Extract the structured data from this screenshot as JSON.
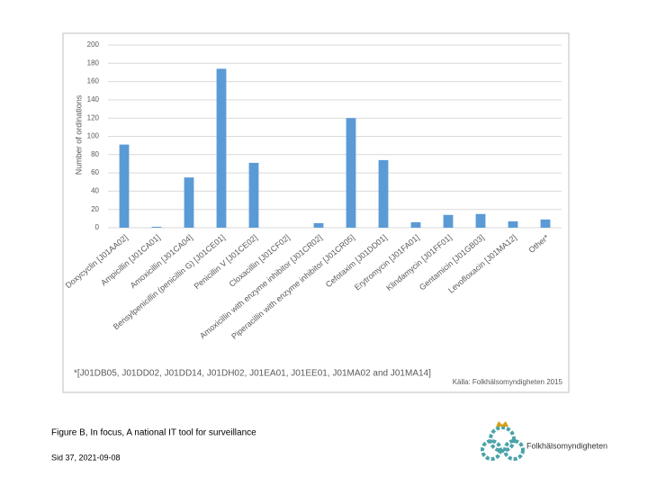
{
  "chart_data": {
    "type": "bar",
    "y_label": "Number of ordinations",
    "categories": [
      "Doxycyclin [J01AA02]",
      "Ampicillin [J01CA01]",
      "Amoxicillin [J01CA04]",
      "Bensylpenicillin (penicillin G) [J01CE01]",
      "Penicillin V [J01CE02]",
      "Cloxacillin [J01CF02]",
      "Amoxicillin with enzyme inhibitor [J01CR02]",
      "Piperacillin with enzyme inhibitor [J01CR05]",
      "Cefotaxim [J01DD01]",
      "Erytromycin [J01FA01]",
      "Klindamycin [J01FF01]",
      "Gentamicin [J01GB03]",
      "Levofloxacin [J01MA12]",
      "Other*"
    ],
    "values": [
      91,
      1,
      55,
      174,
      71,
      0,
      5,
      120,
      74,
      6,
      14,
      15,
      7,
      9
    ],
    "color": "#5b9bd5",
    "ylim": [
      0,
      200
    ],
    "yticks": [
      0,
      20,
      40,
      60,
      80,
      100,
      120,
      140,
      160,
      180,
      200
    ],
    "grid": true,
    "note": "*[J01DB05, J01DD02, J01DD14, J01DH02, J01EA01, J01EE01, J01MA02 and J01MA14]",
    "source": "Källa: Folkhälsomyndigheten 2015"
  },
  "caption": "Figure B, In focus, A national IT tool for surveillance",
  "footer": "Sid 37, 2021-09-08",
  "logo": "Folkhälsomyndigheten"
}
